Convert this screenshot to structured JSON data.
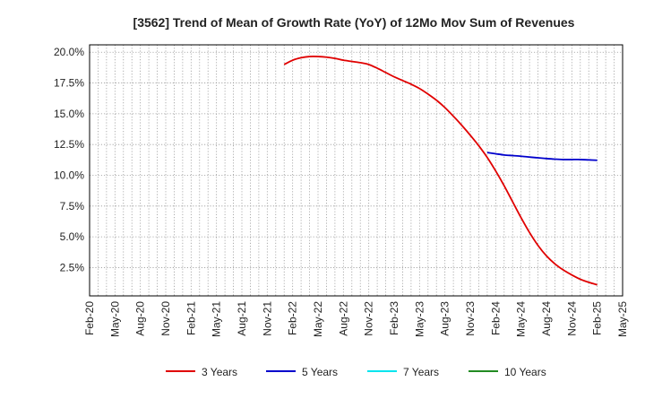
{
  "chart_data": {
    "type": "line",
    "title": "[3562]  Trend of Mean of Growth Rate (YoY) of 12Mo Mov Sum of Revenues",
    "xlabel": "",
    "ylabel": "",
    "x_ticks": [
      "Feb-20",
      "May-20",
      "Aug-20",
      "Nov-20",
      "Feb-21",
      "May-21",
      "Aug-21",
      "Nov-21",
      "Feb-22",
      "May-22",
      "Aug-22",
      "Nov-22",
      "Feb-23",
      "May-23",
      "Aug-23",
      "Nov-23",
      "Feb-24",
      "May-24",
      "Aug-24",
      "Nov-24",
      "Feb-25",
      "May-25"
    ],
    "y_ticks": [
      "2.5%",
      "5.0%",
      "7.5%",
      "10.0%",
      "12.5%",
      "15.0%",
      "17.5%",
      "20.0%"
    ],
    "y_tick_values": [
      2.5,
      5.0,
      7.5,
      10.0,
      12.5,
      15.0,
      17.5,
      20.0
    ],
    "ylim": [
      0.2,
      20.6
    ],
    "x_range_months": [
      0,
      63
    ],
    "series": [
      {
        "name": "3 Years",
        "color": "#e00000",
        "points": [
          {
            "x": "Jan-22",
            "m": 23,
            "y": 19.0
          },
          {
            "x": "Feb-22",
            "m": 24,
            "y": 19.35
          },
          {
            "x": "Mar-22",
            "m": 25,
            "y": 19.55
          },
          {
            "x": "Apr-22",
            "m": 26,
            "y": 19.65
          },
          {
            "x": "May-22",
            "m": 27,
            "y": 19.65
          },
          {
            "x": "Jun-22",
            "m": 28,
            "y": 19.6
          },
          {
            "x": "Jul-22",
            "m": 29,
            "y": 19.5
          },
          {
            "x": "Aug-22",
            "m": 30,
            "y": 19.35
          },
          {
            "x": "Sep-22",
            "m": 31,
            "y": 19.25
          },
          {
            "x": "Oct-22",
            "m": 32,
            "y": 19.15
          },
          {
            "x": "Nov-22",
            "m": 33,
            "y": 19.0
          },
          {
            "x": "Dec-22",
            "m": 34,
            "y": 18.7
          },
          {
            "x": "Jan-23",
            "m": 35,
            "y": 18.35
          },
          {
            "x": "Feb-23",
            "m": 36,
            "y": 18.0
          },
          {
            "x": "Mar-23",
            "m": 37,
            "y": 17.7
          },
          {
            "x": "Apr-23",
            "m": 38,
            "y": 17.4
          },
          {
            "x": "May-23",
            "m": 39,
            "y": 17.05
          },
          {
            "x": "Jun-23",
            "m": 40,
            "y": 16.6
          },
          {
            "x": "Jul-23",
            "m": 41,
            "y": 16.1
          },
          {
            "x": "Aug-23",
            "m": 42,
            "y": 15.5
          },
          {
            "x": "Sep-23",
            "m": 43,
            "y": 14.8
          },
          {
            "x": "Oct-23",
            "m": 44,
            "y": 14.05
          },
          {
            "x": "Nov-23",
            "m": 45,
            "y": 13.25
          },
          {
            "x": "Dec-23",
            "m": 46,
            "y": 12.4
          },
          {
            "x": "Jan-24",
            "m": 47,
            "y": 11.45
          },
          {
            "x": "Feb-24",
            "m": 48,
            "y": 10.35
          },
          {
            "x": "Mar-24",
            "m": 49,
            "y": 9.15
          },
          {
            "x": "Apr-24",
            "m": 50,
            "y": 7.85
          },
          {
            "x": "May-24",
            "m": 51,
            "y": 6.55
          },
          {
            "x": "Jun-24",
            "m": 52,
            "y": 5.35
          },
          {
            "x": "Jul-24",
            "m": 53,
            "y": 4.3
          },
          {
            "x": "Aug-24",
            "m": 54,
            "y": 3.45
          },
          {
            "x": "Sep-24",
            "m": 55,
            "y": 2.8
          },
          {
            "x": "Oct-24",
            "m": 56,
            "y": 2.3
          },
          {
            "x": "Nov-24",
            "m": 57,
            "y": 1.9
          },
          {
            "x": "Dec-24",
            "m": 58,
            "y": 1.55
          },
          {
            "x": "Jan-25",
            "m": 59,
            "y": 1.3
          },
          {
            "x": "Feb-25",
            "m": 60,
            "y": 1.1
          }
        ]
      },
      {
        "name": "5 Years",
        "color": "#0000cc",
        "points": [
          {
            "x": "Jan-24",
            "m": 47,
            "y": 11.85
          },
          {
            "x": "Feb-24",
            "m": 48,
            "y": 11.75
          },
          {
            "x": "Mar-24",
            "m": 49,
            "y": 11.65
          },
          {
            "x": "Apr-24",
            "m": 50,
            "y": 11.6
          },
          {
            "x": "May-24",
            "m": 51,
            "y": 11.55
          },
          {
            "x": "Jun-24",
            "m": 52,
            "y": 11.48
          },
          {
            "x": "Jul-24",
            "m": 53,
            "y": 11.42
          },
          {
            "x": "Aug-24",
            "m": 54,
            "y": 11.36
          },
          {
            "x": "Sep-24",
            "m": 55,
            "y": 11.31
          },
          {
            "x": "Oct-24",
            "m": 56,
            "y": 11.28
          },
          {
            "x": "Nov-24",
            "m": 57,
            "y": 11.28
          },
          {
            "x": "Dec-24",
            "m": 58,
            "y": 11.28
          },
          {
            "x": "Jan-25",
            "m": 59,
            "y": 11.25
          },
          {
            "x": "Feb-25",
            "m": 60,
            "y": 11.22
          }
        ]
      },
      {
        "name": "7 Years",
        "color": "#00e5ee",
        "points": []
      },
      {
        "name": "10 Years",
        "color": "#228b22",
        "points": []
      }
    ],
    "legend_position": "bottom",
    "grid": true
  }
}
